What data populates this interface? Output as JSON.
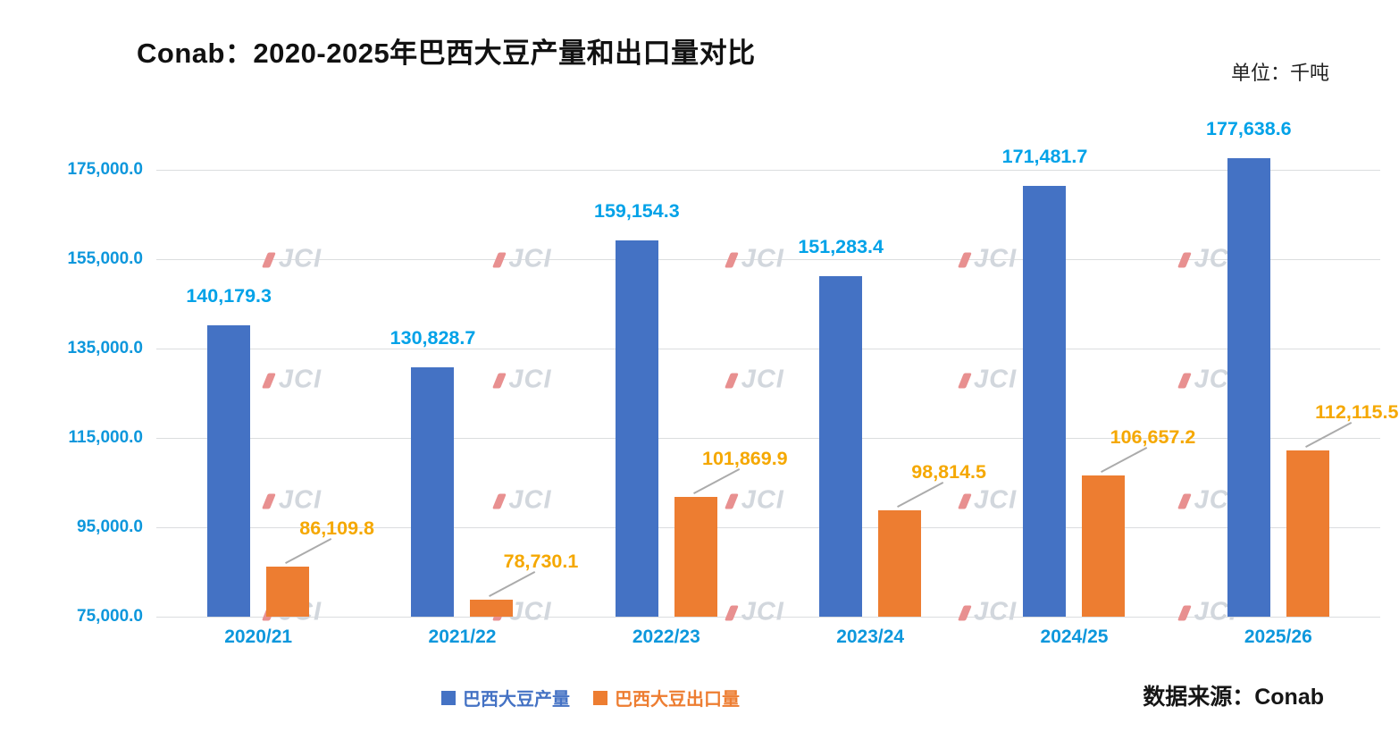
{
  "header": {
    "title": "Conab：2020-2025年巴西大豆产量和出口量对比",
    "unit_label": "单位：千吨"
  },
  "footer": {
    "source_label": "数据来源：Conab"
  },
  "watermark": {
    "text": "JCI"
  },
  "colors": {
    "production_bar": "#4472C4",
    "export_bar": "#ED7D31",
    "production_label": "#00A2E8",
    "export_label": "#F5A800",
    "axis_label": "#0D97DC",
    "gridline": "#DBDDDF"
  },
  "chart_data": {
    "type": "bar",
    "title": "Conab：2020-2025年巴西大豆产量和出口量对比",
    "unit": "千吨",
    "categories": [
      "2020/21",
      "2021/22",
      "2022/23",
      "2023/24",
      "2024/25",
      "2025/26"
    ],
    "series": [
      {
        "name": "巴西大豆产量",
        "values": [
          140179.3,
          130828.7,
          159154.3,
          151283.4,
          171481.7,
          177638.6
        ],
        "labels": [
          "140,179.3",
          "130,828.7",
          "159,154.3",
          "151,283.4",
          "171,481.7",
          "177,638.6"
        ]
      },
      {
        "name": "巴西大豆出口量",
        "values": [
          86109.8,
          78730.1,
          101869.9,
          98814.5,
          106657.2,
          112115.5
        ],
        "labels": [
          "86,109.8",
          "78,730.1",
          "101,869.9",
          "98,814.5",
          "106,657.2",
          "112,115.5"
        ]
      }
    ],
    "y_axis": {
      "min": 75000,
      "max": 185000,
      "ticks": [
        {
          "value": 175000,
          "label": "175,000.0"
        },
        {
          "value": 155000,
          "label": "155,000.0"
        },
        {
          "value": 135000,
          "label": "135,000.0"
        },
        {
          "value": 115000,
          "label": "115,000.0"
        },
        {
          "value": 95000,
          "label": "95,000.0"
        },
        {
          "value": 75000,
          "label": "75,000.0"
        }
      ],
      "gridlines": true
    },
    "legend_position": "bottom"
  }
}
